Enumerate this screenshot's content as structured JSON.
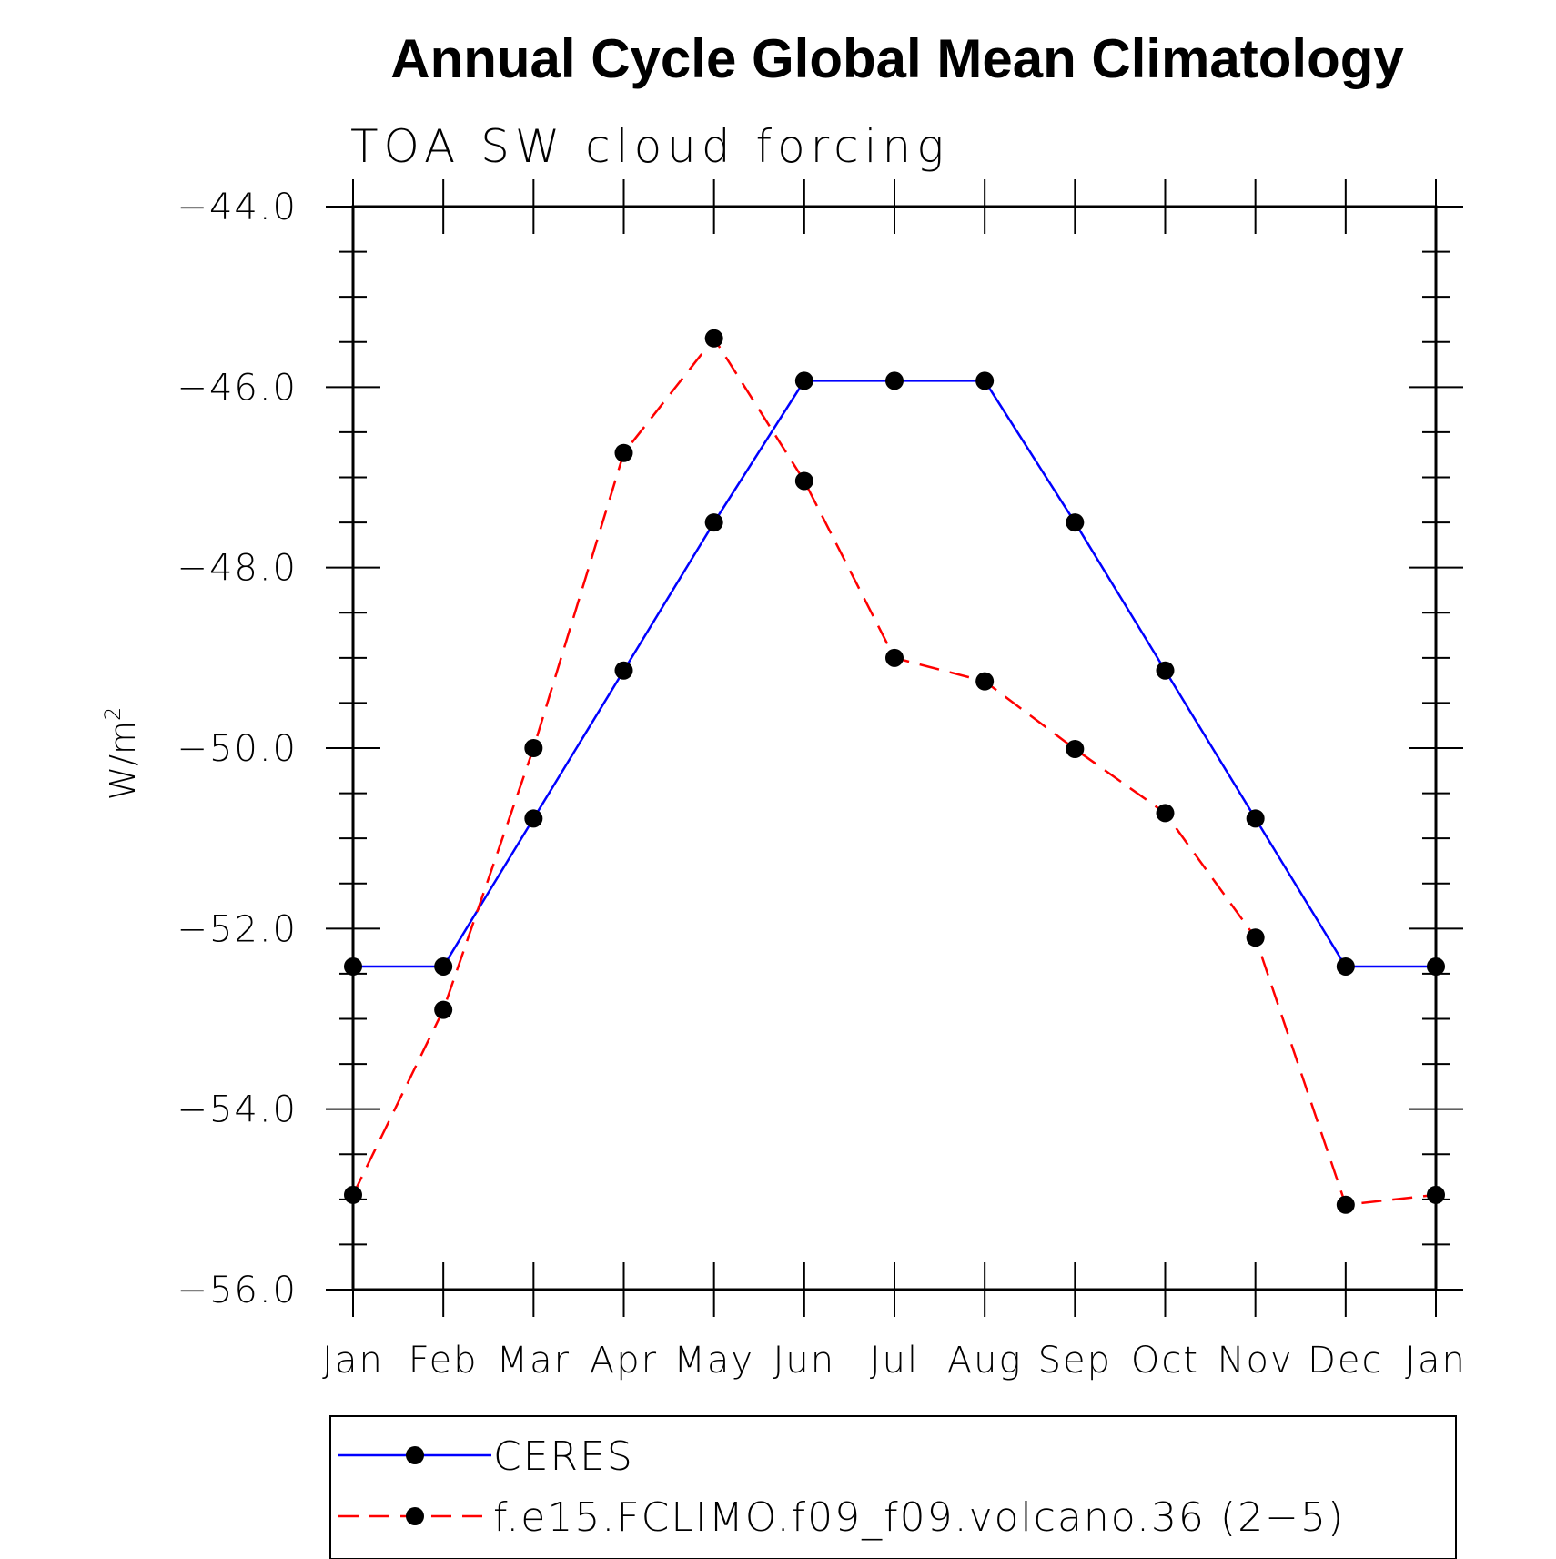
{
  "chart_data": {
    "type": "line",
    "title": "Annual Cycle Global Mean Climatology",
    "subtitle": "TOA SW cloud forcing",
    "ylabel": "W/m",
    "ylabel_sup": "2",
    "xlabel": "",
    "categories": [
      "Jan",
      "Feb",
      "Mar",
      "Apr",
      "May",
      "Jun",
      "Jul",
      "Aug",
      "Sep",
      "Oct",
      "Nov",
      "Dec",
      "Jan"
    ],
    "ylim": [
      -56.0,
      -44.0
    ],
    "yticks": [
      "-56.0",
      "-54.0",
      "-52.0",
      "-50.0",
      "-48.0",
      "-46.0",
      "-44.0"
    ],
    "grid": false,
    "legend_position": "bottom",
    "series": [
      {
        "name": "CERES",
        "color": "#0000ff",
        "dash": "solid",
        "values": [
          -52.42,
          -52.42,
          -50.78,
          -49.14,
          -47.5,
          -45.93,
          -45.93,
          -45.93,
          -47.5,
          -49.14,
          -50.78,
          -52.42,
          -52.42
        ]
      },
      {
        "name": "f.e15.FCLIMO.f09_f09.volcano.36 (2−5)",
        "color": "#ff0000",
        "dash": "dashed",
        "values": [
          -54.95,
          -52.9,
          -50.0,
          -46.73,
          -45.46,
          -47.04,
          -49.0,
          -49.26,
          -50.01,
          -50.72,
          -52.1,
          -55.06,
          -54.95
        ]
      }
    ]
  }
}
